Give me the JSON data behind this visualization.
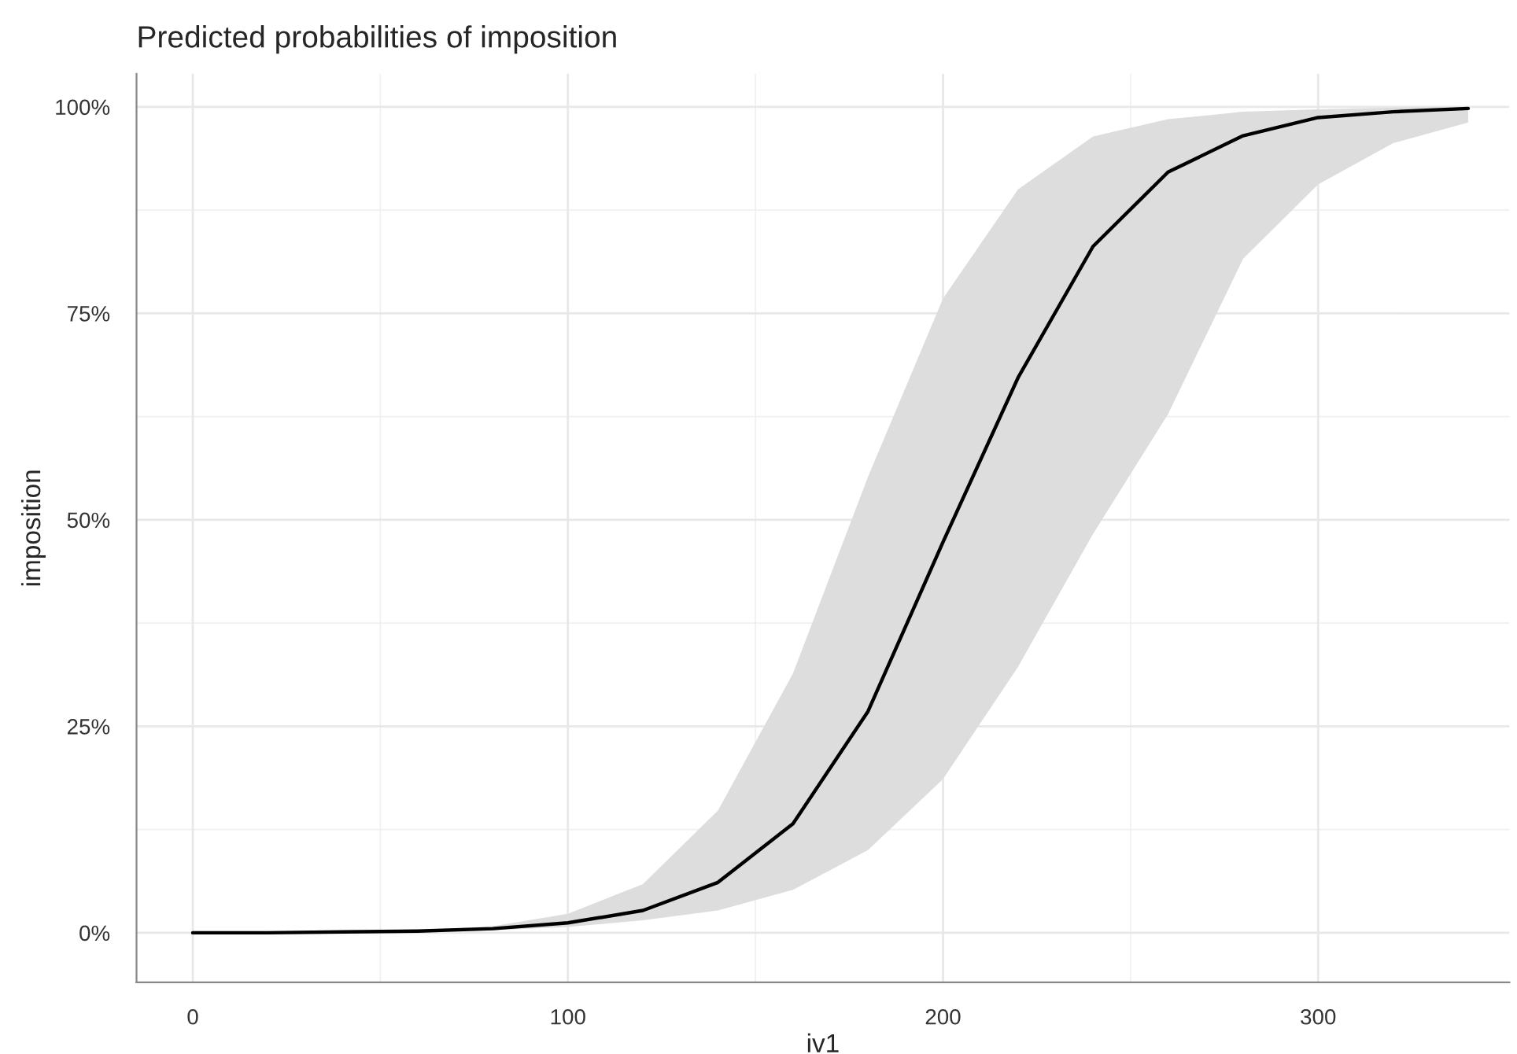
{
  "chart_data": {
    "type": "line",
    "title": "Predicted probabilities of imposition",
    "xlabel": "iv1",
    "ylabel": "imposition",
    "x": [
      0,
      20,
      40,
      60,
      80,
      100,
      120,
      140,
      160,
      180,
      200,
      220,
      240,
      260,
      280,
      300,
      320,
      340
    ],
    "series": [
      {
        "color": "#000000",
        "values": [
          0,
          0,
          0.1,
          0.2,
          0.5,
          1.2,
          2.7,
          6.1,
          13.2,
          26.8,
          47.3,
          67.2,
          83.1,
          92.1,
          96.5,
          98.7,
          99.4,
          99.8
        ],
        "lower": [
          0,
          0,
          0,
          0.1,
          0.3,
          0.7,
          1.5,
          2.7,
          5.2,
          10,
          18.6,
          32.2,
          48.3,
          62.8,
          81.6,
          90.6,
          95.6,
          98.1
        ],
        "upper": [
          0,
          0,
          0.1,
          0.3,
          0.8,
          2.3,
          5.9,
          14.8,
          31.4,
          55.2,
          76.8,
          90,
          96.4,
          98.5,
          99.4,
          99.7,
          99.9,
          100
        ]
      }
    ],
    "xlim": [
      -15,
      351
    ],
    "xticks": [
      0,
      100,
      200,
      300
    ],
    "ylim": [
      -6,
      104
    ],
    "yticks": [
      {
        "value": 0,
        "label": "0%"
      },
      {
        "value": 25,
        "label": "25%"
      },
      {
        "value": 50,
        "label": "50%"
      },
      {
        "value": 75,
        "label": "75%"
      },
      {
        "value": 100,
        "label": "100%"
      }
    ],
    "grid": true,
    "line_style": "solid"
  }
}
